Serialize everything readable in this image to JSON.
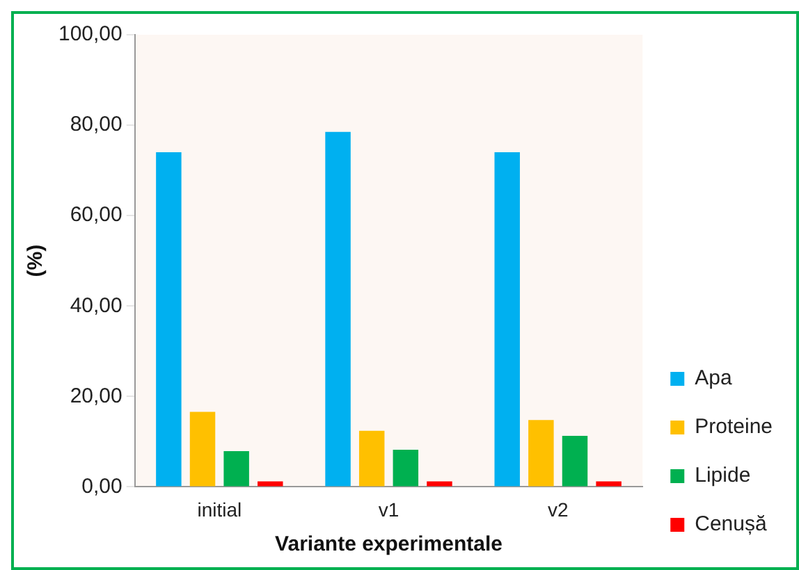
{
  "chart_data": {
    "type": "bar",
    "xlabel": "Variante experimentale",
    "ylabel": "(%)",
    "categories": [
      "initial",
      "v1",
      "v2"
    ],
    "series": [
      {
        "name": "Apa",
        "color": "#00b0f0",
        "values": [
          74,
          78.5,
          74
        ]
      },
      {
        "name": "Proteine",
        "color": "#ffc000",
        "values": [
          16.6,
          12.4,
          14.8
        ]
      },
      {
        "name": "Lipide",
        "color": "#00b050",
        "values": [
          7.9,
          8.2,
          11.3
        ]
      },
      {
        "name": "Cenușă",
        "color": "#ff0000",
        "values": [
          1.2,
          1.2,
          1.2
        ]
      }
    ],
    "ylim": [
      0,
      100
    ],
    "yticks": [
      {
        "value": 0,
        "label": "0,00"
      },
      {
        "value": 20,
        "label": "20,00"
      },
      {
        "value": 40,
        "label": "40,00"
      },
      {
        "value": 60,
        "label": "60,00"
      },
      {
        "value": 80,
        "label": "80,00"
      },
      {
        "value": 100,
        "label": "100,00"
      }
    ],
    "grid": false,
    "legend": "bottom right"
  }
}
